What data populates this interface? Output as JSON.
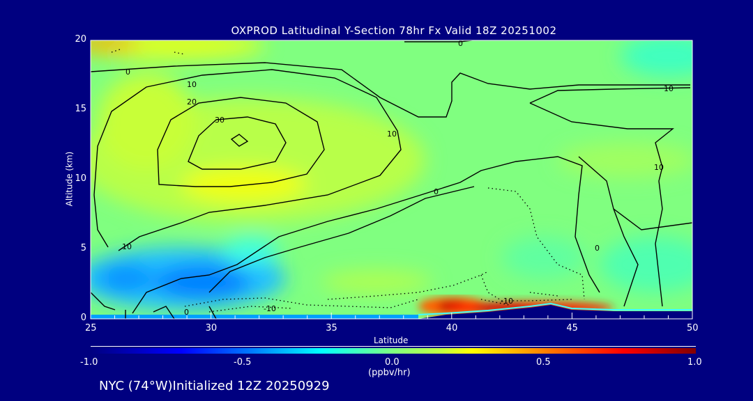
{
  "chart_data": {
    "type": "heatmap",
    "title": "OXPROD Latitudinal Y-Section 78hr  Fx Valid 18Z 20251002",
    "xlabel": "Latitude",
    "ylabel": "Altitude (km)",
    "xlim": [
      25,
      50
    ],
    "ylim": [
      0,
      20
    ],
    "xticks": [
      "25",
      "30",
      "35",
      "40",
      "45",
      "50"
    ],
    "yticks": [
      "0",
      "5",
      "10",
      "15",
      "20"
    ],
    "colorbar": {
      "range": [
        -1.0,
        1.0
      ],
      "ticks": [
        "-1.0",
        "-0.5",
        "0.0",
        "0.5",
        "1.0"
      ],
      "units": "(ppbv/hr)"
    },
    "contour_labels": [
      "0",
      "10",
      "20",
      "30",
      "10",
      "0",
      "10",
      "-10",
      "0",
      "-10",
      "10",
      "10",
      "0",
      "0"
    ],
    "features": [
      {
        "lat": 30.5,
        "alt": 10,
        "value": 0.35
      },
      {
        "lat": 30,
        "alt": 2.5,
        "value": -0.45
      },
      {
        "lat": 40,
        "alt": 0.8,
        "value": 0.85
      },
      {
        "lat": 43,
        "alt": 0.6,
        "value": 0.75
      },
      {
        "lat": 25.5,
        "alt": 19.8,
        "value": 0.45
      }
    ],
    "footer": "NYC (74°W)Initialized 12Z 20250929"
  },
  "colors": {
    "background": "#000080"
  }
}
